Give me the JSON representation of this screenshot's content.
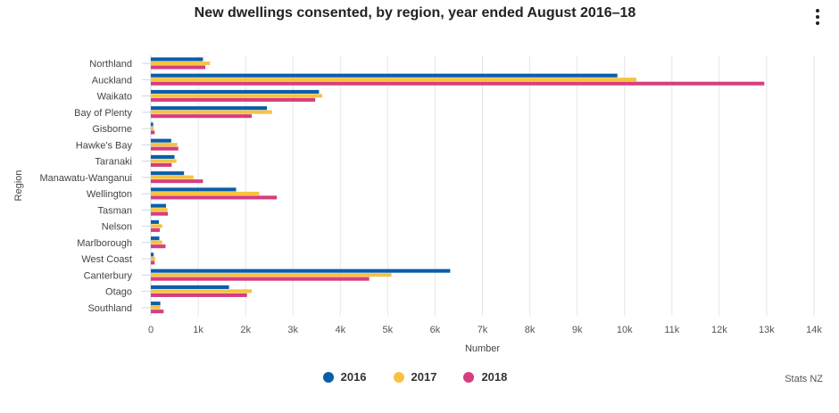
{
  "title": "New dwellings consented, by region, year ended August 2016–18",
  "credit": "Stats NZ",
  "menu_icon": "kebab-menu-icon",
  "colors": {
    "2016": "#0a5ea8",
    "2017": "#f7c242",
    "2018": "#d63e7d"
  },
  "chart_data": {
    "type": "bar",
    "orientation": "horizontal",
    "title": "New dwellings consented, by region, year ended August 2016–18",
    "xlabel": "Number",
    "ylabel": "Region",
    "xlim": [
      0,
      14000
    ],
    "xticks": [
      0,
      1000,
      2000,
      3000,
      4000,
      5000,
      6000,
      7000,
      8000,
      9000,
      10000,
      11000,
      12000,
      13000,
      14000
    ],
    "xtick_labels": [
      "0",
      "1k",
      "2k",
      "3k",
      "4k",
      "5k",
      "6k",
      "7k",
      "8k",
      "9k",
      "10k",
      "11k",
      "12k",
      "13k",
      "14k"
    ],
    "grid": "vertical",
    "legend_position": "bottom",
    "categories": [
      "Northland",
      "Auckland",
      "Waikato",
      "Bay of Plenty",
      "Gisborne",
      "Hawke's Bay",
      "Taranaki",
      "Manawatu-Wanganui",
      "Wellington",
      "Tasman",
      "Nelson",
      "Marlborough",
      "West Coast",
      "Canterbury",
      "Otago",
      "Southland"
    ],
    "series": [
      {
        "name": "2016",
        "color": "#0a5ea8",
        "values": [
          1100,
          9850,
          3550,
          2450,
          50,
          430,
          500,
          700,
          1800,
          320,
          170,
          180,
          60,
          6320,
          1650,
          200
        ]
      },
      {
        "name": "2017",
        "color": "#f7c242",
        "values": [
          1250,
          10250,
          3620,
          2560,
          60,
          560,
          540,
          900,
          2290,
          350,
          240,
          240,
          90,
          5080,
          2130,
          200
        ]
      },
      {
        "name": "2018",
        "color": "#d63e7d",
        "values": [
          1150,
          12950,
          3470,
          2130,
          80,
          580,
          440,
          1100,
          2660,
          360,
          190,
          310,
          80,
          4610,
          2030,
          270
        ]
      }
    ]
  }
}
